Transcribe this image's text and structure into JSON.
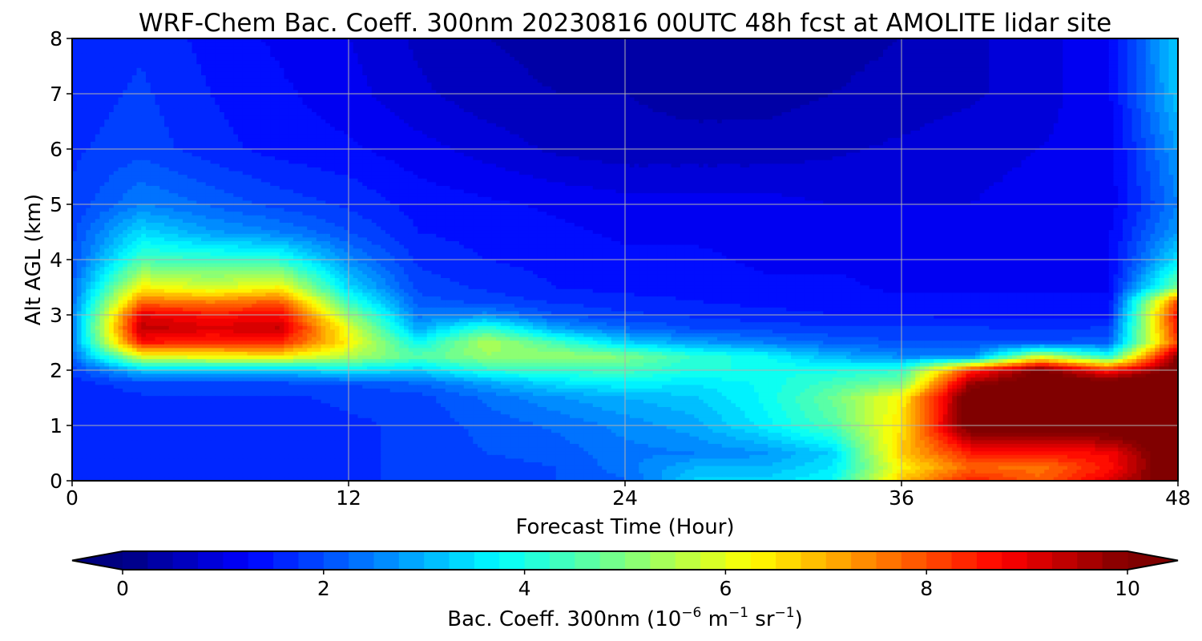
{
  "chart_data": {
    "type": "heatmap",
    "title": "WRF-Chem Bac. Coeff. 300nm  20230816 00UTC 48h fcst at AMOLITE lidar site",
    "xlabel": "Forecast Time (Hour)",
    "ylabel": "Alt AGL (km)",
    "xlim": [
      0,
      48
    ],
    "ylim": [
      0,
      8
    ],
    "xticks": [
      "0",
      "12",
      "24",
      "36",
      "48"
    ],
    "yticks": [
      "0",
      "1",
      "2",
      "3",
      "4",
      "5",
      "6",
      "7",
      "8"
    ],
    "grid": true,
    "colormap": "jet",
    "colorbar": {
      "label_main": "Bac. Coeff. 300nm  (10",
      "exp1": "−6",
      "label_mid": " m",
      "exp2": "−1",
      "label_mid2": " sr",
      "exp3": "−1",
      "label_end": ")",
      "range": [
        0,
        10
      ],
      "ticks": [
        "0",
        "2",
        "4",
        "6",
        "8",
        "10"
      ],
      "extend": "both",
      "orientation": "horizontal",
      "placement": "bottom"
    },
    "x": [
      0,
      3,
      6,
      9,
      12,
      15,
      18,
      21,
      24,
      27,
      30,
      33,
      36,
      39,
      42,
      45,
      48
    ],
    "y": [
      0,
      0.25,
      0.5,
      1,
      1.5,
      1.75,
      2,
      2.25,
      2.5,
      2.75,
      3,
      3.25,
      3.5,
      4,
      4.5,
      5,
      6,
      7,
      8
    ],
    "z": [
      [
        1.5,
        1.6,
        1.6,
        1.7,
        1.7,
        1.8,
        1.9,
        2.0,
        2.2,
        3.3,
        3.3,
        3.8,
        6.8,
        8.5,
        7.8,
        9.0,
        10.8
      ],
      [
        1.5,
        1.6,
        1.6,
        1.7,
        1.7,
        1.8,
        1.9,
        2.0,
        2.4,
        3.0,
        3.0,
        3.5,
        6.3,
        7.8,
        7.6,
        8.6,
        10.8
      ],
      [
        1.5,
        1.6,
        1.6,
        1.6,
        1.7,
        1.8,
        2.0,
        2.1,
        2.4,
        2.5,
        2.7,
        3.3,
        6.8,
        8.5,
        8.6,
        8.8,
        10.8
      ],
      [
        1.5,
        1.6,
        1.6,
        1.6,
        1.7,
        1.8,
        2.1,
        2.3,
        2.6,
        2.9,
        3.6,
        4.5,
        6.5,
        10.5,
        10.6,
        10.6,
        10.8
      ],
      [
        1.6,
        1.7,
        1.7,
        1.7,
        1.8,
        1.9,
        2.3,
        2.7,
        3.0,
        3.2,
        3.8,
        4.8,
        6.3,
        10.5,
        10.6,
        10.6,
        10.8
      ],
      [
        1.6,
        1.9,
        1.9,
        1.9,
        2.0,
        2.2,
        2.8,
        3.4,
        3.7,
        3.5,
        3.8,
        4.4,
        5.0,
        9.8,
        10.5,
        10.6,
        10.8
      ],
      [
        1.8,
        3.2,
        3.2,
        3.2,
        3.6,
        3.3,
        4.1,
        4.3,
        4.4,
        4.0,
        4.0,
        3.9,
        4.2,
        8.3,
        10.2,
        8.4,
        10.5
      ],
      [
        2.2,
        6.0,
        6.3,
        6.4,
        5.5,
        4.6,
        5.2,
        5.3,
        5.0,
        4.2,
        3.8,
        3.0,
        2.6,
        2.5,
        5.8,
        4.0,
        10.0
      ],
      [
        2.5,
        8.6,
        8.3,
        8.4,
        6.3,
        3.8,
        5.5,
        4.4,
        3.3,
        2.8,
        2.5,
        2.2,
        2.0,
        2.0,
        2.0,
        2.2,
        8.2
      ],
      [
        2.5,
        9.4,
        9.1,
        9.3,
        6.0,
        2.9,
        4.3,
        2.9,
        2.3,
        2.0,
        1.9,
        1.8,
        1.8,
        1.8,
        1.7,
        1.8,
        8.6
      ],
      [
        2.4,
        9.0,
        8.6,
        8.8,
        5.2,
        2.4,
        2.6,
        2.0,
        1.8,
        1.7,
        1.6,
        1.5,
        1.5,
        1.4,
        1.4,
        1.4,
        8.8
      ],
      [
        2.3,
        7.6,
        7.4,
        7.8,
        4.2,
        2.1,
        1.9,
        1.7,
        1.6,
        1.5,
        1.4,
        1.4,
        1.3,
        1.3,
        1.3,
        1.3,
        8.0
      ],
      [
        2.2,
        6.3,
        5.8,
        6.3,
        3.4,
        1.9,
        1.7,
        1.5,
        1.4,
        1.4,
        1.3,
        1.3,
        1.2,
        1.2,
        1.2,
        1.2,
        5.0
      ],
      [
        2.0,
        4.4,
        4.3,
        4.1,
        2.6,
        1.7,
        1.5,
        1.4,
        1.3,
        1.3,
        1.2,
        1.2,
        1.2,
        1.2,
        1.2,
        1.2,
        3.5
      ],
      [
        1.9,
        3.4,
        2.8,
        2.5,
        2.0,
        1.5,
        1.4,
        1.3,
        1.2,
        1.2,
        1.2,
        1.1,
        1.1,
        1.1,
        1.1,
        1.2,
        2.8
      ],
      [
        1.8,
        2.5,
        2.2,
        1.9,
        1.7,
        1.4,
        1.3,
        1.2,
        1.1,
        1.1,
        1.1,
        1.0,
        1.0,
        1.0,
        1.1,
        1.1,
        2.5
      ],
      [
        1.7,
        1.9,
        1.6,
        1.4,
        1.3,
        1.1,
        0.9,
        0.7,
        0.6,
        0.6,
        0.6,
        0.7,
        0.8,
        0.9,
        1.0,
        1.1,
        2.8
      ],
      [
        1.6,
        1.8,
        1.5,
        1.3,
        1.1,
        0.8,
        0.6,
        0.5,
        0.5,
        0.4,
        0.4,
        0.5,
        0.6,
        0.7,
        0.9,
        1.2,
        3.2
      ],
      [
        1.6,
        1.7,
        1.4,
        1.2,
        1.0,
        0.7,
        0.5,
        0.4,
        0.4,
        0.4,
        0.4,
        0.4,
        0.5,
        0.7,
        0.9,
        1.2,
        3.3
      ]
    ]
  }
}
